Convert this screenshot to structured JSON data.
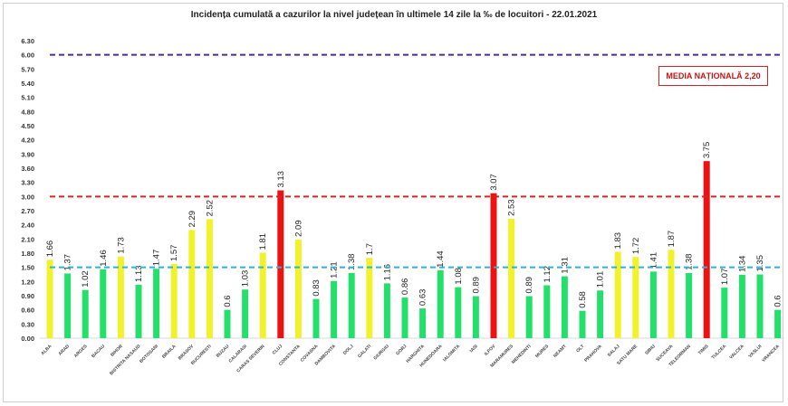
{
  "chart_data": {
    "type": "bar",
    "title": "Incidența cumulată a cazurilor la nivel județean în ultimele 14 zile la ‰ de locuitori - 22.01.2021",
    "annotation": "MEDIA NAȚIONALĂ 2,20",
    "ylim": [
      0,
      6.3
    ],
    "ytick_step": 0.3,
    "grid": false,
    "categories": [
      "ALBA",
      "ARAD",
      "ARGES",
      "BACAU",
      "BIHOR",
      "BISTRITA NASAUD",
      "BOTOSANI",
      "BRAILA",
      "BRASOV",
      "BUCURESTI",
      "BUZAU",
      "CALARASI",
      "CARAS SEVERIN",
      "CLUJ",
      "CONSTANTA",
      "COVASNA",
      "DAMBOVITA",
      "DOLJ",
      "GALATI",
      "GIURGIU",
      "GORJ",
      "HARGHITA",
      "HUNEDOARA",
      "IALOMITA",
      "IASI",
      "ILFOV",
      "MARAMURES",
      "MEHEDINTI",
      "MURES",
      "NEAMT",
      "OLT",
      "PRAHOVA",
      "SALAJ",
      "SATU MARE",
      "SIBIU",
      "SUCEAVA",
      "TELEORMAN",
      "TIMIS",
      "TULCEA",
      "VALCEA",
      "VASLUI",
      "VRANCEA"
    ],
    "values": [
      1.66,
      1.37,
      1.02,
      1.46,
      1.73,
      1.13,
      1.47,
      1.57,
      2.29,
      2.52,
      0.6,
      1.03,
      1.81,
      3.13,
      2.09,
      0.83,
      1.21,
      1.38,
      1.7,
      1.16,
      0.86,
      0.63,
      1.44,
      1.08,
      0.89,
      3.07,
      2.53,
      0.89,
      1.12,
      1.31,
      0.58,
      1.01,
      1.83,
      1.72,
      1.41,
      1.87,
      1.38,
      3.75,
      1.07,
      1.34,
      1.35,
      0.6
    ],
    "value_labels": [
      "1.66",
      "1.37",
      "1.02",
      "1.46",
      "1.73",
      "1.13",
      "1.47",
      "1.57",
      "2.29",
      "2.52",
      "0.6",
      "1.03",
      "1.81",
      "3.13",
      "2.09",
      "0.83",
      "1.21",
      "1.38",
      "1.7",
      "1.16",
      "0.86",
      "0.63",
      "1.44",
      "1.08",
      "0.89",
      "3.07",
      "2.53",
      "0.89",
      "1.12",
      "1.31",
      "0.58",
      "1.01",
      "1.83",
      "1.72",
      "1.41",
      "1.87",
      "1.38",
      "3.75",
      "1.07",
      "1.34",
      "1.35",
      "0.6"
    ],
    "thresholds": [
      {
        "value": 6.0,
        "color": "#4b2a9a"
      },
      {
        "value": 3.0,
        "color": "#e02020"
      },
      {
        "value": 1.5,
        "color": "#20b8e0"
      }
    ],
    "colors": {
      "low": "#22e06a",
      "medium": "#f2f22a",
      "high": "#ee1111"
    }
  }
}
